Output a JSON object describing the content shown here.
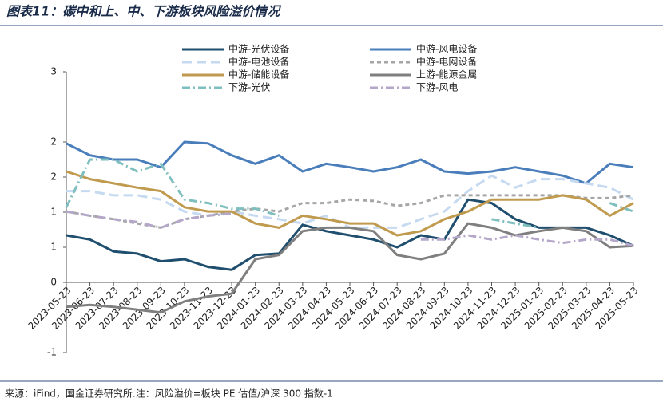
{
  "chart_data": {
    "type": "line",
    "title": "图表11：碳中和上、中、下游板块风险溢价情况",
    "source": "来源：iFind，国金证券研究所.注：风险溢价=板块 PE 估值/沪深 300 指数-1",
    "categories": [
      "2023-05-23",
      "2023-06-23",
      "2023-07-23",
      "2023-08-23",
      "2023-09-23",
      "2023-10-23",
      "2023-11-23",
      "2023-12-23",
      "2024-01-23",
      "2024-02-23",
      "2024-03-23",
      "2024-04-23",
      "2024-05-23",
      "2024-06-23",
      "2024-07-23",
      "2024-08-23",
      "2024-09-23",
      "2024-10-23",
      "2024-11-23",
      "2024-12-23",
      "2025-01-23",
      "2025-02-23",
      "2025-03-23",
      "2025-04-23",
      "2025-05-23"
    ],
    "ylim": [
      -1,
      3
    ],
    "yticks": [
      {
        "value": -1,
        "label": "-1"
      },
      0,
      {
        "value": 0.5,
        "label": "1"
      },
      1,
      {
        "value": 1.5,
        "label": "2"
      },
      2,
      3
    ],
    "legend": "top",
    "series": [
      {
        "name": "中游-光伏设备",
        "color": "#1f4e6e",
        "dash": "solid",
        "values": [
          0.67,
          0.61,
          0.44,
          0.41,
          0.3,
          0.33,
          0.22,
          0.18,
          0.39,
          0.41,
          0.82,
          0.73,
          0.67,
          0.61,
          0.5,
          0.67,
          0.61,
          1.18,
          1.13,
          0.9,
          0.78,
          0.78,
          0.78,
          0.67,
          0.52
        ]
      },
      {
        "name": "中游-风电设备",
        "color": "#4a7ebb",
        "dash": "solid",
        "values": [
          1.98,
          1.81,
          1.75,
          1.75,
          1.64,
          2.0,
          1.98,
          1.81,
          1.69,
          1.81,
          1.58,
          1.69,
          1.64,
          1.58,
          1.64,
          1.75,
          1.58,
          1.55,
          1.58,
          1.64,
          1.58,
          1.52,
          1.41,
          1.69,
          1.64
        ]
      },
      {
        "name": "中游-电池设备",
        "color": "#c5d9f1",
        "dash": "long",
        "values": [
          1.3,
          1.3,
          1.24,
          1.24,
          1.18,
          1.01,
          0.95,
          1.01,
          0.95,
          0.9,
          0.84,
          0.95,
          0.78,
          0.78,
          0.78,
          0.9,
          1.01,
          1.3,
          1.52,
          1.35,
          1.47,
          1.47,
          1.41,
          1.35,
          1.18
        ]
      },
      {
        "name": "中游-电网设备",
        "color": "#a6a6a6",
        "dash": "short",
        "values": [
          1.01,
          0.95,
          0.9,
          0.84,
          0.78,
          0.9,
          0.95,
          1.01,
          1.05,
          1.01,
          1.13,
          1.13,
          1.18,
          1.16,
          1.09,
          1.13,
          1.24,
          1.24,
          1.24,
          1.24,
          1.24,
          1.24,
          1.2,
          1.2,
          1.24
        ]
      },
      {
        "name": "中游-储能设备",
        "color": "#c09a4e",
        "dash": "solid",
        "values": [
          1.58,
          1.47,
          1.41,
          1.35,
          1.3,
          1.07,
          1.01,
          1.01,
          0.84,
          0.78,
          0.95,
          0.9,
          0.84,
          0.84,
          0.67,
          0.73,
          0.9,
          1.01,
          1.18,
          1.18,
          1.18,
          1.24,
          1.18,
          0.95,
          1.13
        ]
      },
      {
        "name": "上游-能源金属",
        "color": "#7f7f7f",
        "dash": "solid",
        "values": [
          -0.35,
          -0.32,
          -0.35,
          -0.39,
          -0.43,
          -0.27,
          -0.2,
          -0.16,
          0.33,
          0.39,
          0.73,
          0.78,
          0.78,
          0.73,
          0.39,
          0.33,
          0.41,
          0.84,
          0.78,
          0.67,
          0.73,
          0.78,
          0.73,
          0.5,
          0.52
        ]
      },
      {
        "name": "下游-光伏",
        "color": "#7fbfbf",
        "dash": "dashdot",
        "values": [
          1.07,
          1.75,
          1.75,
          1.58,
          1.69,
          1.18,
          1.13,
          1.05,
          1.05,
          0.95,
          null,
          null,
          null,
          null,
          null,
          null,
          null,
          null,
          0.9,
          0.84,
          0.78,
          null,
          null,
          1.13,
          1.01
        ]
      },
      {
        "name": "下游-风电",
        "color": "#b4a7c9",
        "dash": "dashdot",
        "values": [
          1.01,
          0.95,
          0.9,
          0.86,
          0.78,
          0.9,
          0.95,
          0.98,
          null,
          null,
          null,
          null,
          null,
          null,
          null,
          0.61,
          0.61,
          0.67,
          0.61,
          0.67,
          0.61,
          0.56,
          0.61,
          0.61,
          0.52
        ]
      }
    ]
  }
}
